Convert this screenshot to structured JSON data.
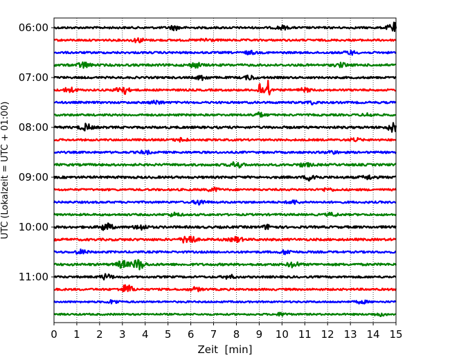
{
  "chart_data": {
    "type": "line",
    "title": "",
    "xlabel": "Zeit  [min]",
    "ylabel": "UTC (Lokalzeit = UTC + 01:00)",
    "xlim": [
      0,
      15
    ],
    "x_ticks": [
      0,
      1,
      2,
      3,
      4,
      5,
      6,
      7,
      8,
      9,
      10,
      11,
      12,
      13,
      14,
      15
    ],
    "y_tick_labels": [
      "06:00",
      "07:00",
      "08:00",
      "09:00",
      "10:00",
      "11:00"
    ],
    "grid": "vertical dotted",
    "trace_interval_min": 15,
    "first_trace": "06:00",
    "trace_count": 24,
    "series_colors": [
      "#000000",
      "#ff0000",
      "#0000ff",
      "#008000"
    ],
    "traces": [
      {
        "start": "06:00",
        "noise": 0.35,
        "events": [
          [
            5.3,
            0.7
          ],
          [
            10.0,
            0.6
          ],
          [
            14.9,
            1.6
          ]
        ]
      },
      {
        "start": "06:15",
        "noise": 0.35,
        "events": [
          [
            3.7,
            0.7
          ],
          [
            6.7,
            0.6
          ]
        ]
      },
      {
        "start": "06:30",
        "noise": 0.35,
        "events": [
          [
            8.6,
            0.5
          ],
          [
            13.0,
            0.6
          ]
        ]
      },
      {
        "start": "06:45",
        "noise": 0.4,
        "events": [
          [
            1.3,
            1.0
          ],
          [
            6.2,
            0.8
          ],
          [
            12.6,
            0.6
          ]
        ]
      },
      {
        "start": "07:00",
        "noise": 0.35,
        "events": [
          [
            6.5,
            0.8
          ],
          [
            8.6,
            0.7
          ]
        ]
      },
      {
        "start": "07:15",
        "noise": 0.35,
        "events": [
          [
            0.7,
            0.9
          ],
          [
            3.0,
            1.6
          ],
          [
            9.0,
            3.5
          ],
          [
            9.2,
            4.0
          ],
          [
            9.4,
            5.0
          ],
          [
            11.0,
            0.6
          ]
        ]
      },
      {
        "start": "07:30",
        "noise": 0.35,
        "events": [
          [
            4.5,
            0.6
          ],
          [
            11.3,
            0.5
          ]
        ]
      },
      {
        "start": "07:45",
        "noise": 0.35,
        "events": [
          [
            9.0,
            0.7
          ],
          [
            13.8,
            0.5
          ]
        ]
      },
      {
        "start": "08:00",
        "noise": 0.4,
        "events": [
          [
            1.4,
            1.1
          ],
          [
            14.9,
            1.5
          ]
        ]
      },
      {
        "start": "08:15",
        "noise": 0.35,
        "events": [
          [
            5.6,
            0.6
          ],
          [
            13.2,
            0.5
          ]
        ]
      },
      {
        "start": "08:30",
        "noise": 0.35,
        "events": [
          [
            4.0,
            0.5
          ],
          [
            12.2,
            0.5
          ]
        ]
      },
      {
        "start": "08:45",
        "noise": 0.4,
        "events": [
          [
            8.0,
            1.0
          ],
          [
            11.0,
            0.6
          ]
        ]
      },
      {
        "start": "09:00",
        "noise": 0.4,
        "events": [
          [
            11.3,
            1.2
          ],
          [
            13.8,
            0.6
          ]
        ]
      },
      {
        "start": "09:15",
        "noise": 0.35,
        "events": [
          [
            7.0,
            0.6
          ],
          [
            12.0,
            0.5
          ]
        ]
      },
      {
        "start": "09:30",
        "noise": 0.35,
        "events": [
          [
            6.4,
            0.8
          ],
          [
            10.5,
            0.6
          ]
        ]
      },
      {
        "start": "09:45",
        "noise": 0.35,
        "events": [
          [
            5.3,
            0.6
          ],
          [
            12.2,
            0.5
          ]
        ]
      },
      {
        "start": "10:00",
        "noise": 0.4,
        "events": [
          [
            2.3,
            1.3
          ],
          [
            3.8,
            0.9
          ],
          [
            9.4,
            0.7
          ]
        ]
      },
      {
        "start": "10:15",
        "noise": 0.4,
        "events": [
          [
            5.9,
            2.0
          ],
          [
            8.0,
            0.8
          ]
        ]
      },
      {
        "start": "10:30",
        "noise": 0.35,
        "events": [
          [
            1.2,
            0.7
          ],
          [
            10.2,
            0.7
          ]
        ]
      },
      {
        "start": "10:45",
        "noise": 0.4,
        "events": [
          [
            3.0,
            1.2
          ],
          [
            3.7,
            1.8
          ],
          [
            10.5,
            0.9
          ]
        ]
      },
      {
        "start": "11:00",
        "noise": 0.35,
        "events": [
          [
            2.3,
            0.9
          ],
          [
            7.7,
            0.6
          ]
        ]
      },
      {
        "start": "11:15",
        "noise": 0.35,
        "events": [
          [
            3.2,
            1.6
          ],
          [
            6.2,
            0.6
          ]
        ]
      },
      {
        "start": "11:30",
        "noise": 0.3,
        "events": [
          [
            2.6,
            0.6
          ],
          [
            13.5,
            0.5
          ]
        ]
      },
      {
        "start": "11:45",
        "noise": 0.3,
        "events": [
          [
            10.0,
            0.5
          ],
          [
            14.3,
            0.5
          ]
        ]
      }
    ]
  }
}
